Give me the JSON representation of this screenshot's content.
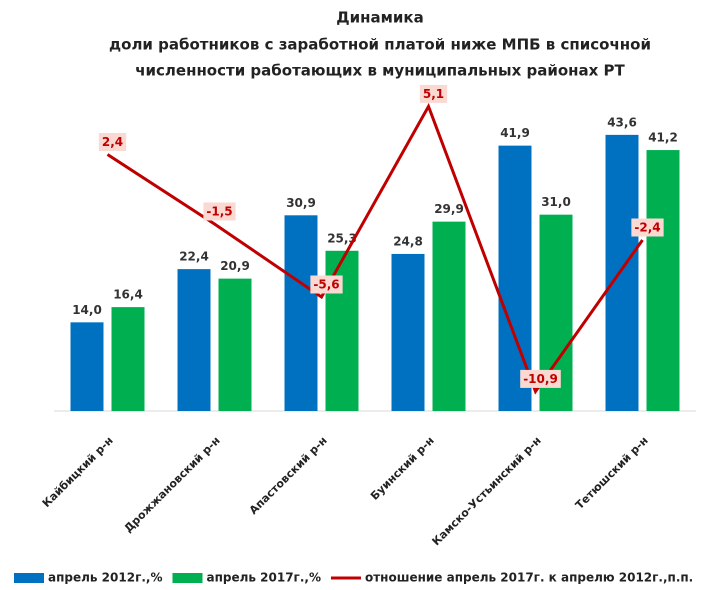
{
  "chart_data": {
    "type": "bar-line",
    "title_lines": [
      "Динамика",
      "доли работников с заработной платой ниже МПБ в списочной",
      "численности работающих в муниципальных районах РТ"
    ],
    "categories": [
      "Кайбицкий р-н",
      "Дрожжановский р-н",
      "Апастовский р-н",
      "Буинский  р-н",
      "Камско-Устьинский р-н",
      "Тетюшский р-н"
    ],
    "series": [
      {
        "name": "апрель 2012г.,%",
        "color": "#0070c0",
        "type": "bar",
        "values": [
          14.0,
          22.4,
          30.9,
          24.8,
          41.9,
          43.6
        ],
        "value_labels": [
          "14,0",
          "22,4",
          "30,9",
          "24,8",
          "41,9",
          "43,6"
        ]
      },
      {
        "name": "апрель 2017г.,%",
        "color": "#00b050",
        "type": "bar",
        "values": [
          16.4,
          20.9,
          25.3,
          29.9,
          31.0,
          41.2
        ],
        "value_labels": [
          "16,4",
          "20,9",
          "25,3",
          "29,9",
          "31,0",
          "41,2"
        ]
      },
      {
        "name": "отношение апрель 2017г. к  апрелю 2012г.,п.п.",
        "color": "#c00000",
        "type": "line",
        "axis": "y2",
        "values": [
          2.4,
          -1.5,
          -5.6,
          5.1,
          -10.9,
          -2.4
        ],
        "value_labels": [
          "2,4",
          "-1,5",
          "-5,6",
          "5,1",
          "-10,9",
          "-2,4"
        ]
      }
    ],
    "ylim": [
      0,
      45
    ],
    "y2lim": [
      -12,
      4
    ],
    "legend": "bottom"
  }
}
